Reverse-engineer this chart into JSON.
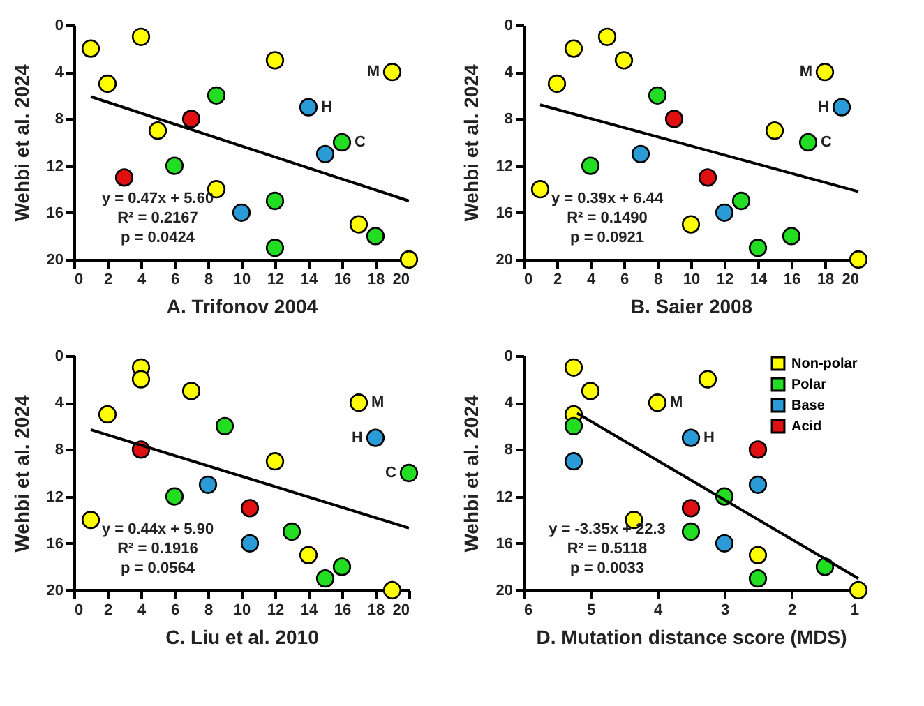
{
  "chart_data": [
    {
      "type": "scatter",
      "xlabel": "A. Trifonov 2004",
      "ylabel": "Wehbi et al. 2024",
      "xlim": [
        0,
        20
      ],
      "ylim": [
        20,
        0
      ],
      "xticks": [
        0,
        2,
        4,
        6,
        8,
        10,
        12,
        14,
        16,
        18,
        20
      ],
      "yticks": [
        0,
        4,
        8,
        12,
        16,
        20
      ],
      "grid": false,
      "marker": "circle",
      "series": [
        {
          "color": "#ffff00",
          "x": [
            1,
            4,
            2,
            12,
            19,
            5,
            8.5,
            17,
            20
          ],
          "values": [
            2,
            1,
            5,
            3,
            4,
            9,
            14,
            17,
            20
          ]
        },
        {
          "color": "#22dd22",
          "x": [
            8.5,
            16,
            6,
            12,
            18,
            12
          ],
          "values": [
            6,
            10,
            12,
            15,
            18,
            19
          ]
        },
        {
          "color": "#2b9bd8",
          "x": [
            14,
            15,
            10
          ],
          "values": [
            7,
            11,
            16
          ]
        },
        {
          "color": "#e01010",
          "x": [
            7,
            3
          ],
          "values": [
            8,
            13
          ]
        },
        {
          "type": "line",
          "marker": "none",
          "color": "#000000",
          "x": [
            1,
            20
          ],
          "values": [
            6.1,
            15.0
          ]
        }
      ],
      "annotations": [
        "y = 0.47x + 5.60",
        "R² = 0.2167",
        "p = 0.0424",
        {
          "text": "M",
          "x": 19,
          "y": 4
        },
        {
          "text": "H",
          "x": 14,
          "y": 7
        },
        {
          "text": "C",
          "x": 16,
          "y": 10
        }
      ]
    },
    {
      "type": "scatter",
      "xlabel": "B. Saier 2008",
      "ylabel": "Wehbi et al. 2024",
      "xlim": [
        0,
        20
      ],
      "ylim": [
        20,
        0
      ],
      "xticks": [
        0,
        2,
        4,
        6,
        8,
        10,
        12,
        14,
        16,
        18,
        20
      ],
      "yticks": [
        0,
        4,
        8,
        12,
        16,
        20
      ],
      "grid": false,
      "marker": "circle",
      "series": [
        {
          "color": "#ffff00",
          "x": [
            1,
            2,
            3,
            5,
            6,
            18,
            15,
            10,
            20
          ],
          "values": [
            14,
            5,
            2,
            1,
            3,
            4,
            9,
            17,
            20
          ]
        },
        {
          "color": "#22dd22",
          "x": [
            8,
            4,
            17,
            13,
            14,
            16
          ],
          "values": [
            6,
            12,
            10,
            15,
            19,
            18
          ]
        },
        {
          "color": "#2b9bd8",
          "x": [
            19,
            7,
            12
          ],
          "values": [
            7,
            11,
            16
          ]
        },
        {
          "color": "#e01010",
          "x": [
            9,
            11
          ],
          "values": [
            8,
            13
          ]
        },
        {
          "type": "line",
          "marker": "none",
          "color": "#000000",
          "x": [
            1,
            20
          ],
          "values": [
            6.8,
            14.2
          ]
        }
      ],
      "annotations": [
        "y = 0.39x + 6.44",
        "R² = 0.1490",
        "p = 0.0921",
        {
          "text": "M",
          "x": 18,
          "y": 4
        },
        {
          "text": "H",
          "x": 19,
          "y": 7
        },
        {
          "text": "C",
          "x": 17,
          "y": 10
        }
      ]
    },
    {
      "type": "scatter",
      "xlabel": "C. Liu et al. 2010",
      "ylabel": "Wehbi et al. 2024",
      "xlim": [
        0,
        20
      ],
      "ylim": [
        20,
        0
      ],
      "xticks": [
        0,
        2,
        4,
        6,
        8,
        10,
        12,
        14,
        16,
        18,
        20
      ],
      "yticks": [
        0,
        4,
        8,
        12,
        16,
        20
      ],
      "grid": false,
      "marker": "circle",
      "series": [
        {
          "color": "#ffff00",
          "x": [
            4,
            4,
            7,
            17,
            2,
            12,
            1,
            14,
            19
          ],
          "values": [
            1,
            2,
            3,
            4,
            5,
            9,
            14,
            17,
            20
          ]
        },
        {
          "color": "#22dd22",
          "x": [
            9,
            20,
            6,
            13,
            16,
            15
          ],
          "values": [
            6,
            10,
            12,
            15,
            18,
            19
          ]
        },
        {
          "color": "#2b9bd8",
          "x": [
            18,
            8,
            10.5
          ],
          "values": [
            7,
            11,
            16
          ]
        },
        {
          "color": "#e01010",
          "x": [
            4,
            10.5
          ],
          "values": [
            8,
            13
          ]
        },
        {
          "type": "line",
          "marker": "none",
          "color": "#000000",
          "x": [
            1,
            20
          ],
          "values": [
            6.3,
            14.7
          ]
        }
      ],
      "annotations": [
        "y = 0.44x + 5.90",
        "R² = 0.1916",
        "p = 0.0564",
        {
          "text": "M",
          "x": 17,
          "y": 4
        },
        {
          "text": "H",
          "x": 18,
          "y": 7
        },
        {
          "text": "C",
          "x": 20,
          "y": 10
        }
      ]
    },
    {
      "type": "scatter",
      "xlabel": "D. Mutation distance score (MDS)",
      "ylabel": "Wehbi et al. 2024",
      "xlim": [
        6,
        1
      ],
      "ylim": [
        20,
        0
      ],
      "xticks": [
        6,
        5,
        4,
        3,
        2,
        1
      ],
      "yticks": [
        0,
        4,
        8,
        12,
        16,
        20
      ],
      "grid": false,
      "marker": "circle",
      "legend": "top right",
      "series": [
        {
          "name": "Non-polar",
          "color": "#ffff00",
          "x": [
            5.25,
            3.25,
            5,
            4,
            5.25,
            4.35,
            2.5,
            1
          ],
          "values": [
            1,
            2,
            3,
            4,
            5,
            14,
            17,
            20
          ]
        },
        {
          "name": "Polar",
          "color": "#22dd22",
          "x": [
            5.25,
            3,
            3.5,
            1.5,
            2.5
          ],
          "values": [
            6,
            12,
            15,
            18,
            19
          ]
        },
        {
          "name": "Base",
          "color": "#2b9bd8",
          "x": [
            3.5,
            5.25,
            2.5,
            3
          ],
          "values": [
            7,
            9,
            11,
            16
          ]
        },
        {
          "name": "Acid",
          "color": "#e01010",
          "x": [
            2.5,
            3.5
          ],
          "values": [
            8,
            13
          ]
        },
        {
          "type": "line",
          "marker": "none",
          "color": "#000000",
          "x": [
            5.2,
            1
          ],
          "values": [
            4.9,
            19.0
          ]
        }
      ],
      "annotations": [
        "y = -3.35x + 22.3",
        "R² = 0.5118",
        "p = 0.0033",
        {
          "text": "M",
          "x": 4,
          "y": 4
        },
        {
          "text": "H",
          "x": 3.5,
          "y": 7
        }
      ]
    }
  ]
}
